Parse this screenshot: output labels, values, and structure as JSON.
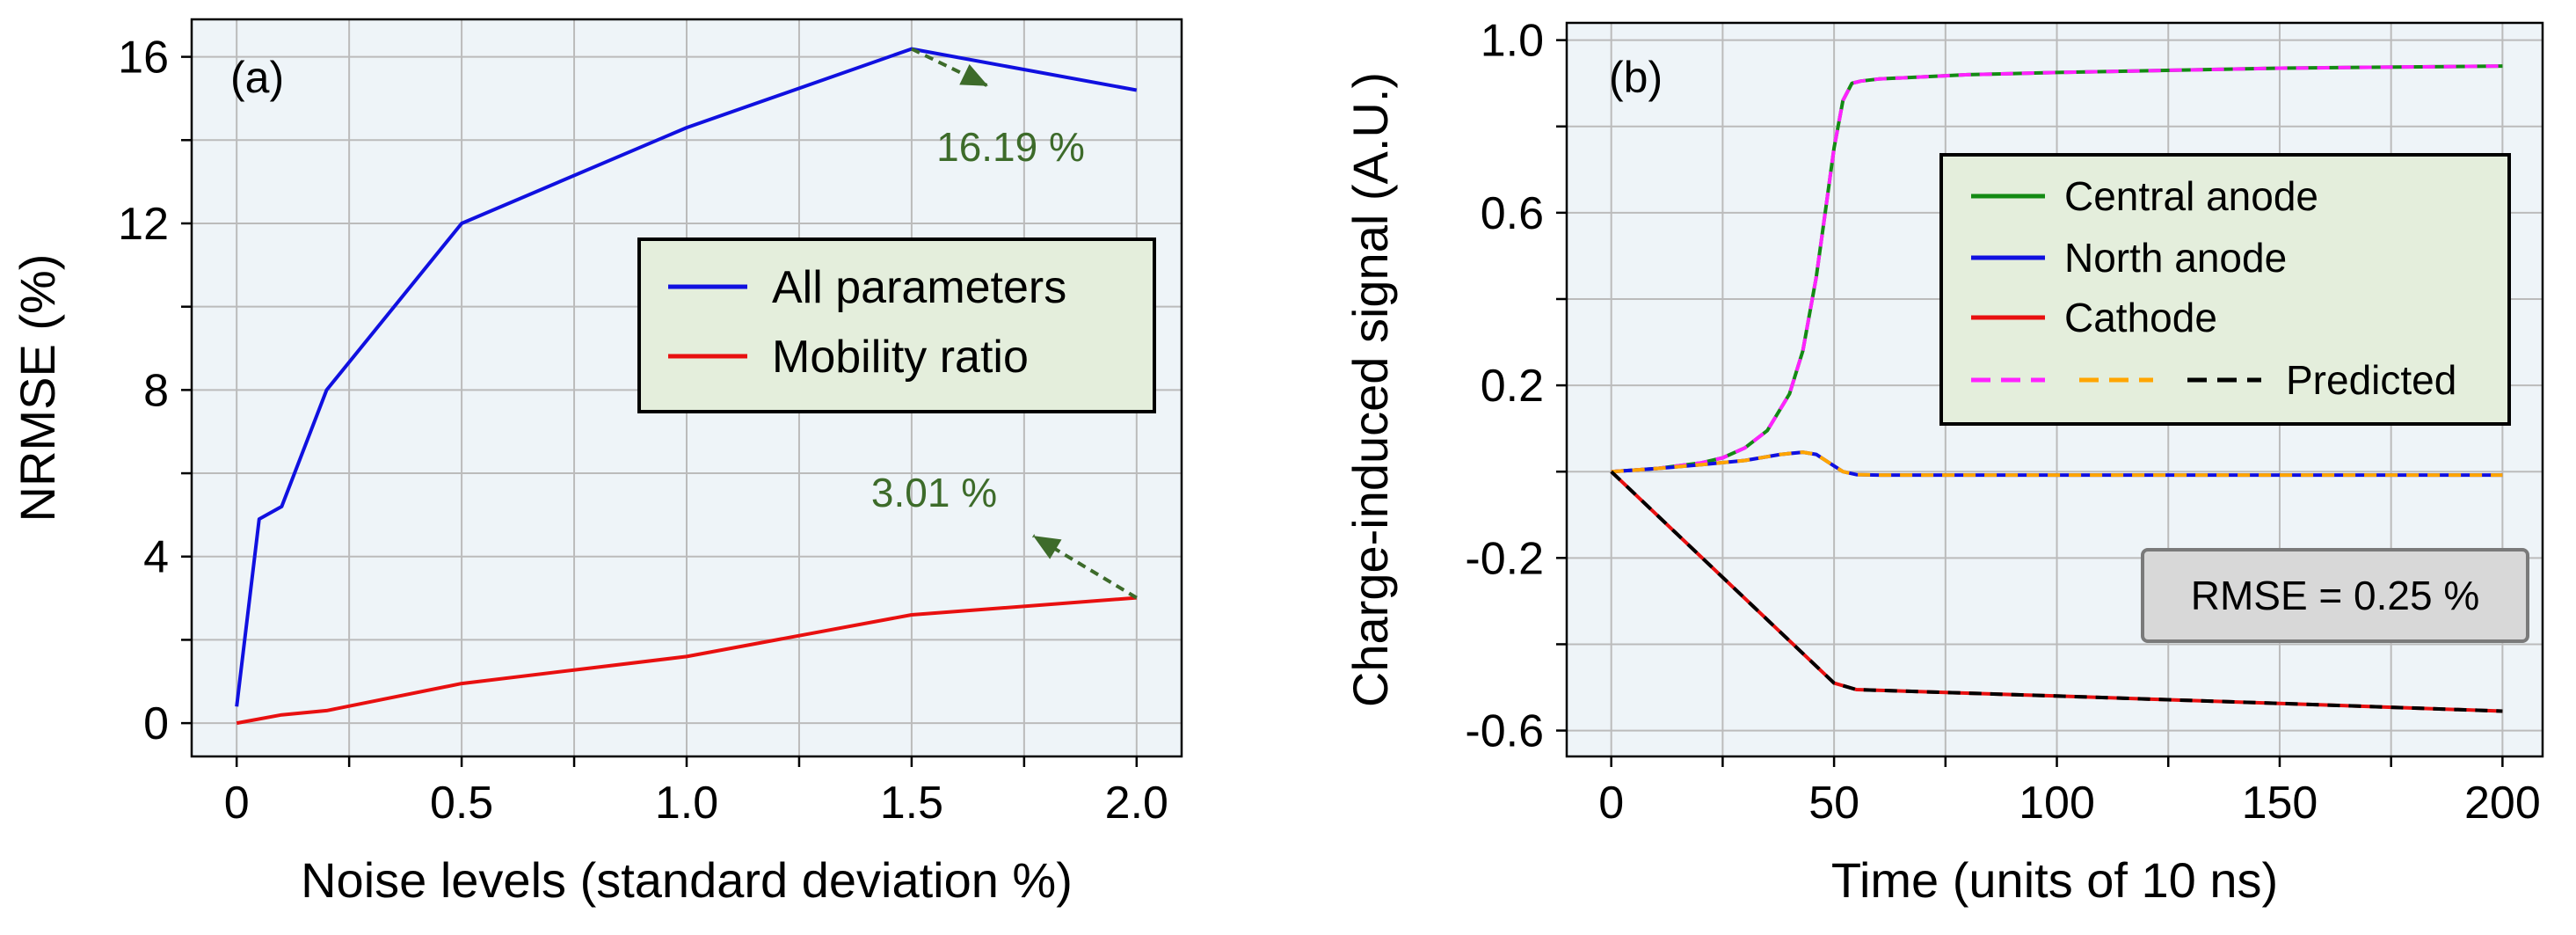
{
  "chart_data": [
    {
      "type": "line",
      "panel_label": "(a)",
      "xlabel": "Noise levels (standard deviation %)",
      "ylabel": "NRMSE (%)",
      "xlim": [
        -0.1,
        2.1
      ],
      "ylim": [
        -0.8,
        16.9
      ],
      "xticks": [
        0,
        0.5,
        1.0,
        1.5,
        2.0
      ],
      "xtick_labels": [
        "0",
        "0.5",
        "1.0",
        "1.5",
        "2.0"
      ],
      "xminor": [
        0.25,
        0.75,
        1.25,
        1.75
      ],
      "yticks": [
        0,
        4,
        8,
        12,
        16
      ],
      "ytick_labels": [
        "0",
        "4",
        "8",
        "12",
        "16"
      ],
      "yminor": [
        2,
        6,
        10,
        14
      ],
      "grid": true,
      "legend_position": "center-right",
      "series": [
        {
          "name": "All parameters",
          "color": "#1010e0",
          "x": [
            0,
            0.05,
            0.1,
            0.2,
            0.5,
            1.0,
            1.5,
            2.0
          ],
          "y": [
            0.4,
            4.9,
            5.2,
            8.0,
            12.0,
            14.3,
            16.19,
            15.2
          ]
        },
        {
          "name": "Mobility ratio",
          "color": "#e81010",
          "x": [
            0,
            0.1,
            0.2,
            0.5,
            1.0,
            1.5,
            2.0
          ],
          "y": [
            0.0,
            0.2,
            0.3,
            0.95,
            1.6,
            2.6,
            3.01
          ]
        }
      ],
      "annotations": [
        {
          "text": "16.19 %",
          "from": [
            1.5,
            16.19
          ],
          "to": [
            1.67,
            15.3
          ],
          "text_at": [
            1.72,
            13.5
          ]
        },
        {
          "text": "3.01 %",
          "from": [
            2.0,
            3.01
          ],
          "to": [
            1.77,
            4.5
          ],
          "text_at": [
            1.55,
            5.2
          ]
        }
      ],
      "annotation_color": "#3d6b2a"
    },
    {
      "type": "line",
      "panel_label": "(b)",
      "xlabel": "Time (units of 10 ns)",
      "ylabel": "Charge-induced signal (A.U.)",
      "xlim": [
        -10,
        209
      ],
      "ylim": [
        -0.66,
        1.04
      ],
      "xticks": [
        0,
        50,
        100,
        150,
        200
      ],
      "xtick_labels": [
        "0",
        "50",
        "100",
        "150",
        "200"
      ],
      "xminor": [
        25,
        75,
        125,
        175
      ],
      "yticks": [
        1.0,
        0.6,
        0.2,
        -0.2,
        -0.6
      ],
      "ytick_labels": [
        "1.0",
        "0.6",
        "0.2",
        "-0.2",
        "-0.6"
      ],
      "yminor": [
        0.8,
        0.4,
        0.0,
        -0.4
      ],
      "grid": true,
      "legend_position": "upper-right",
      "series": [
        {
          "name": "Central anode",
          "color": "#138a13",
          "x": [
            0,
            10,
            20,
            25,
            30,
            35,
            40,
            43,
            46,
            48,
            50,
            52,
            54,
            56,
            60,
            80,
            100,
            150,
            200
          ],
          "y": [
            0,
            0.007,
            0.02,
            0.032,
            0.055,
            0.095,
            0.18,
            0.28,
            0.45,
            0.6,
            0.75,
            0.86,
            0.9,
            0.905,
            0.91,
            0.92,
            0.925,
            0.935,
            0.94
          ]
        },
        {
          "name": "North anode",
          "color": "#1010e0",
          "x": [
            0,
            10,
            20,
            30,
            38,
            43,
            46,
            49,
            52,
            55,
            60,
            100,
            150,
            200
          ],
          "y": [
            0,
            0.007,
            0.016,
            0.026,
            0.04,
            0.045,
            0.04,
            0.02,
            0.0,
            -0.007,
            -0.008,
            -0.008,
            -0.008,
            -0.008
          ]
        },
        {
          "name": "Cathode",
          "color": "#e81010",
          "x": [
            0,
            50,
            55,
            100,
            150,
            200
          ],
          "y": [
            0,
            -0.49,
            -0.505,
            -0.52,
            -0.537,
            -0.555
          ]
        }
      ],
      "predicted_colors": [
        "#ff22ff",
        "#ffa500",
        "#000000"
      ],
      "predicted_label": "Predicted",
      "rmse_box": "RMSE = 0.25 %"
    }
  ],
  "colors": {
    "plot_background": "#eef4f8",
    "grid": "#bbbbbb",
    "legend_background": "#e4eedc",
    "rmse_background": "#d8d8d8"
  }
}
